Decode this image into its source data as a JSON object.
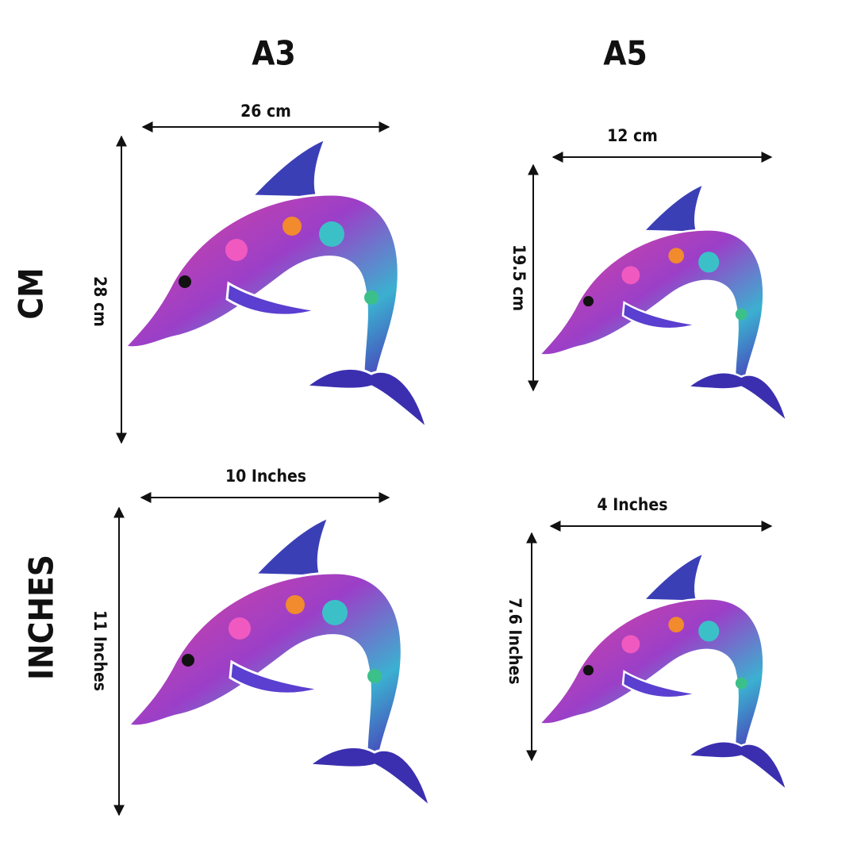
{
  "columns": [
    "A3",
    "A5"
  ],
  "rows": [
    "CM",
    "INCHES"
  ],
  "cells": [
    {
      "width": "26 cm",
      "height": "28 cm"
    },
    {
      "width": "12 cm",
      "height": "19.5 cm"
    },
    {
      "width": "10 Inches",
      "height": "11 Inches"
    },
    {
      "width": "4 Inches",
      "height": "7.6 Inches"
    }
  ]
}
